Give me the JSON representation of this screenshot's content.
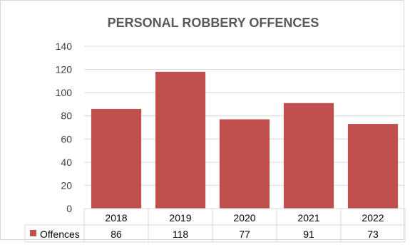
{
  "chart_data": {
    "type": "bar",
    "title": "PERSONAL ROBBERY OFFENCES",
    "categories": [
      "2018",
      "2019",
      "2020",
      "2021",
      "2022"
    ],
    "series": [
      {
        "name": "Offences",
        "values": [
          86,
          118,
          77,
          91,
          73
        ],
        "color": "#c0504d"
      }
    ],
    "yticks": [
      0,
      20,
      40,
      60,
      80,
      100,
      120,
      140
    ],
    "ylim": [
      0,
      140
    ],
    "grid": true,
    "legend": "data-table",
    "data_table": true
  }
}
